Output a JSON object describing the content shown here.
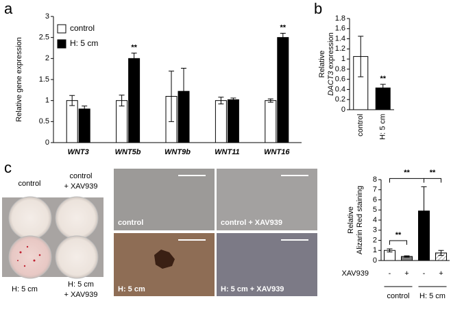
{
  "chart_data": [
    {
      "type": "bar",
      "panel": "a",
      "ylabel": "Relative gene expression",
      "categories": [
        "WNT3",
        "WNT5b",
        "WNT9b",
        "WNT11",
        "WNT16"
      ],
      "series": [
        {
          "name": "control",
          "color": "#ffffff",
          "values": [
            1.0,
            1.0,
            1.1,
            1.0,
            1.0
          ],
          "errors": [
            0.12,
            0.13,
            0.6,
            0.08,
            0.04
          ]
        },
        {
          "name": "H: 5 cm",
          "color": "#000000",
          "values": [
            0.8,
            2.0,
            1.22,
            1.02,
            2.5
          ],
          "errors": [
            0.07,
            0.13,
            0.55,
            0.04,
            0.1
          ]
        }
      ],
      "significance": [
        null,
        "**",
        null,
        null,
        "**"
      ],
      "ylim": [
        0,
        3
      ],
      "yticks": [
        0,
        0.5,
        1,
        1.5,
        2,
        2.5,
        3
      ],
      "legend": "upper left"
    },
    {
      "type": "bar",
      "panel": "b",
      "ylabel": [
        "Relative",
        "DACT3 expression"
      ],
      "categories": [
        "control",
        "H: 5 cm"
      ],
      "values": [
        1.05,
        0.43
      ],
      "errors": [
        0.4,
        0.07
      ],
      "colors": [
        "#ffffff",
        "#000000"
      ],
      "significance": [
        null,
        "**"
      ],
      "ylim": [
        0,
        1.8
      ],
      "yticks": [
        0,
        0.2,
        0.4,
        0.6,
        0.8,
        1,
        1.2,
        1.4,
        1.6,
        1.8
      ]
    },
    {
      "type": "bar",
      "panel": "c",
      "ylabel": [
        "Relative",
        "Alizarin Red staining"
      ],
      "values": [
        1.0,
        0.4,
        4.9,
        0.75
      ],
      "errors": [
        0.15,
        0.07,
        2.4,
        0.25
      ],
      "colors": [
        "#ffffff",
        "#7f7f7f",
        "#000000",
        "#ffffff"
      ],
      "hatched": [
        false,
        false,
        false,
        true
      ],
      "treatment_label": "XAV939",
      "treatment": [
        "-",
        "+",
        "-",
        "+"
      ],
      "groups": [
        "control",
        "H: 5 cm"
      ],
      "comparisons": [
        {
          "pair": [
            0,
            1
          ],
          "label": "**"
        },
        {
          "pair": [
            0,
            2
          ],
          "label": "**"
        },
        {
          "pair": [
            2,
            3
          ],
          "label": "**"
        }
      ],
      "ylim": [
        0,
        8
      ],
      "yticks": [
        0,
        1,
        2,
        3,
        4,
        5,
        6,
        7,
        8
      ]
    }
  ],
  "photos": {
    "dish_labels": [
      [
        "control"
      ],
      [
        "control",
        "+ XAV939"
      ],
      [
        "H: 5 cm"
      ],
      [
        "H: 5 cm",
        "+ XAV939"
      ]
    ],
    "micrograph_labels": [
      "control",
      "control + XAV939",
      "H: 5 cm",
      "H: 5 cm + XAV939"
    ]
  }
}
